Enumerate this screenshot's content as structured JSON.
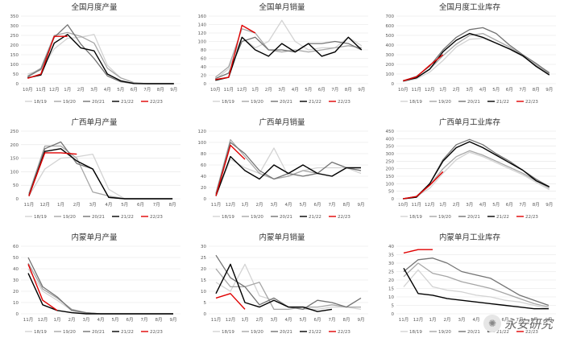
{
  "colors": {
    "18/19": "#d3d3d3",
    "19/20": "#a6a6a6",
    "20/21": "#737373",
    "21/22": "#000000",
    "22/23": "#e00000"
  },
  "watermark": {
    "icon": "wechat-icon",
    "text": "永安研究"
  },
  "chart_data": [
    {
      "type": "line",
      "title": "全国月度产量",
      "categories": [
        "10月",
        "11月",
        "12月",
        "1月",
        "2月",
        "3月",
        "4月",
        "5月",
        "6月",
        "7月",
        "8月",
        "9月"
      ],
      "ylim": [
        0,
        350
      ],
      "yticks": [
        0,
        50,
        100,
        150,
        200,
        250,
        300,
        350
      ],
      "series": [
        {
          "name": "18/19",
          "values": [
            50,
            70,
            180,
            235,
            240,
            255,
            95,
            30,
            6,
            0,
            0,
            0
          ]
        },
        {
          "name": "19/20",
          "values": [
            40,
            80,
            250,
            265,
            245,
            210,
            80,
            30,
            5,
            0,
            0,
            0
          ]
        },
        {
          "name": "20/21",
          "values": [
            35,
            75,
            240,
            305,
            205,
            130,
            40,
            10,
            1,
            0,
            0,
            0
          ]
        },
        {
          "name": "21/22",
          "values": [
            30,
            45,
            210,
            255,
            185,
            170,
            50,
            15,
            1,
            0,
            0,
            0
          ]
        },
        {
          "name": "22/23",
          "values": [
            28,
            50,
            245,
            245,
            null,
            null,
            null,
            null,
            null,
            null,
            null,
            null
          ]
        }
      ]
    },
    {
      "type": "line",
      "title": "全国单月销量",
      "categories": [
        "10月",
        "11月",
        "12月",
        "1月",
        "2月",
        "3月",
        "4月",
        "5月",
        "6月",
        "7月",
        "8月",
        "9月"
      ],
      "ylim": [
        0,
        160
      ],
      "yticks": [
        0,
        20,
        40,
        60,
        80,
        100,
        120,
        140,
        160
      ],
      "series": [
        {
          "name": "18/19",
          "values": [
            10,
            35,
            110,
            85,
            100,
            150,
            100,
            80,
            85,
            85,
            110,
            90
          ]
        },
        {
          "name": "19/20",
          "values": [
            15,
            40,
            130,
            120,
            80,
            75,
            80,
            75,
            80,
            85,
            90,
            85
          ]
        },
        {
          "name": "20/21",
          "values": [
            12,
            25,
            100,
            110,
            80,
            80,
            75,
            95,
            95,
            100,
            95,
            80
          ]
        },
        {
          "name": "21/22",
          "values": [
            8,
            15,
            110,
            80,
            65,
            95,
            75,
            95,
            65,
            75,
            110,
            80
          ]
        },
        {
          "name": "22/23",
          "values": [
            10,
            15,
            138,
            120,
            null,
            null,
            null,
            null,
            null,
            null,
            null,
            null
          ]
        }
      ]
    },
    {
      "type": "line",
      "title": "全国月度工业库存",
      "categories": [
        "10月",
        "11月",
        "12月",
        "1月",
        "2月",
        "3月",
        "4月",
        "5月",
        "6月",
        "7月",
        "8月",
        "9月"
      ],
      "ylim": [
        0,
        700
      ],
      "yticks": [
        0,
        100,
        200,
        300,
        400,
        500,
        600,
        700
      ],
      "series": [
        {
          "name": "18/19",
          "values": [
            20,
            50,
            120,
            240,
            380,
            460,
            470,
            420,
            360,
            280,
            200,
            120
          ]
        },
        {
          "name": "19/20",
          "values": [
            25,
            60,
            150,
            290,
            410,
            500,
            520,
            450,
            380,
            290,
            190,
            100
          ]
        },
        {
          "name": "20/21",
          "values": [
            30,
            75,
            180,
            350,
            480,
            560,
            580,
            520,
            400,
            300,
            210,
            110
          ]
        },
        {
          "name": "21/22",
          "values": [
            30,
            60,
            150,
            330,
            450,
            520,
            480,
            420,
            360,
            290,
            180,
            90
          ]
        },
        {
          "name": "22/23",
          "values": [
            30,
            70,
            190,
            300,
            null,
            null,
            null,
            null,
            null,
            null,
            null,
            null
          ]
        }
      ]
    },
    {
      "type": "line",
      "title": "广西单月产量",
      "categories": [
        "11月",
        "12月",
        "1月",
        "2月",
        "3月",
        "4月",
        "5月",
        "6月",
        "7月",
        "8月"
      ],
      "ylim": [
        0,
        250
      ],
      "yticks": [
        0,
        50,
        100,
        150,
        200,
        250
      ],
      "series": [
        {
          "name": "18/19",
          "values": [
            10,
            110,
            150,
            155,
            165,
            35,
            0,
            0,
            0,
            0
          ]
        },
        {
          "name": "19/20",
          "values": [
            20,
            195,
            195,
            150,
            25,
            10,
            0,
            0,
            0,
            0
          ]
        },
        {
          "name": "20/21",
          "values": [
            15,
            185,
            210,
            130,
            110,
            5,
            0,
            0,
            0,
            0
          ]
        },
        {
          "name": "21/22",
          "values": [
            10,
            175,
            185,
            140,
            110,
            5,
            0,
            0,
            0,
            0
          ]
        },
        {
          "name": "22/23",
          "values": [
            10,
            170,
            170,
            165,
            null,
            null,
            null,
            null,
            null,
            null
          ]
        }
      ]
    },
    {
      "type": "line",
      "title": "广西单月销量",
      "categories": [
        "11月",
        "12月",
        "1月",
        "2月",
        "3月",
        "4月",
        "5月",
        "6月",
        "7月",
        "8月",
        "9月"
      ],
      "ylim": [
        0,
        120
      ],
      "yticks": [
        0,
        20,
        40,
        60,
        80,
        100,
        120
      ],
      "series": [
        {
          "name": "18/19",
          "values": [
            5,
            70,
            55,
            45,
            90,
            40,
            50,
            55,
            55,
            55,
            45
          ]
        },
        {
          "name": "19/20",
          "values": [
            10,
            105,
            75,
            45,
            35,
            40,
            50,
            45,
            40,
            55,
            50
          ]
        },
        {
          "name": "20/21",
          "values": [
            8,
            100,
            80,
            50,
            35,
            45,
            40,
            45,
            65,
            55,
            50
          ]
        },
        {
          "name": "21/22",
          "values": [
            5,
            75,
            50,
            35,
            60,
            45,
            60,
            45,
            40,
            55,
            55
          ]
        },
        {
          "name": "22/23",
          "values": [
            5,
            95,
            70,
            null,
            null,
            null,
            null,
            null,
            null,
            null,
            null
          ]
        }
      ]
    },
    {
      "type": "line",
      "title": "广西单月工业库存",
      "categories": [
        "10月",
        "11月",
        "12月",
        "1月",
        "2月",
        "3月",
        "4月",
        "5月",
        "6月",
        "7月",
        "8月",
        "9月"
      ],
      "ylim": [
        0,
        450
      ],
      "yticks": [
        0,
        50,
        100,
        150,
        200,
        250,
        300,
        350,
        400,
        450
      ],
      "series": [
        {
          "name": "18/19",
          "values": [
            0,
            15,
            70,
            170,
            260,
            310,
            280,
            240,
            200,
            160,
            110,
            60
          ]
        },
        {
          "name": "19/20",
          "values": [
            0,
            10,
            90,
            200,
            280,
            320,
            290,
            250,
            210,
            170,
            120,
            70
          ]
        },
        {
          "name": "20/21",
          "values": [
            0,
            15,
            100,
            260,
            360,
            395,
            360,
            300,
            250,
            190,
            130,
            80
          ]
        },
        {
          "name": "21/22",
          "values": [
            0,
            10,
            100,
            250,
            340,
            380,
            340,
            290,
            240,
            190,
            120,
            80
          ]
        },
        {
          "name": "22/23",
          "values": [
            0,
            15,
            90,
            180,
            null,
            null,
            null,
            null,
            null,
            null,
            null,
            null
          ]
        }
      ]
    },
    {
      "type": "line",
      "title": "内蒙单月产量",
      "categories": [
        "11月",
        "12月",
        "1月",
        "2月",
        "3月",
        "4月",
        "5月",
        "6月",
        "7月",
        "8月",
        "9月"
      ],
      "ylim": [
        0,
        60
      ],
      "yticks": [
        0,
        10,
        20,
        30,
        40,
        50,
        60
      ],
      "series": [
        {
          "name": "18/19",
          "values": [
            40,
            20,
            12,
            3,
            1,
            0,
            0,
            0,
            0,
            0,
            0
          ]
        },
        {
          "name": "19/20",
          "values": [
            45,
            22,
            14,
            4,
            1,
            0,
            0,
            0,
            0,
            0,
            0
          ]
        },
        {
          "name": "20/21",
          "values": [
            50,
            24,
            15,
            3,
            1,
            0,
            0,
            0,
            0,
            0,
            0
          ]
        },
        {
          "name": "21/22",
          "values": [
            36,
            8,
            3,
            1,
            0,
            0,
            0,
            0,
            0,
            0,
            0
          ]
        },
        {
          "name": "22/23",
          "values": [
            44,
            12,
            3,
            null,
            null,
            null,
            null,
            null,
            null,
            null,
            null
          ]
        }
      ]
    },
    {
      "type": "line",
      "title": "内蒙单月销量",
      "categories": [
        "11月",
        "12月",
        "1月",
        "2月",
        "3月",
        "4月",
        "5月",
        "6月",
        "7月",
        "8月",
        "9月"
      ],
      "ylim": [
        0,
        30
      ],
      "yticks": [
        0,
        5,
        10,
        15,
        20,
        25,
        30
      ],
      "series": [
        {
          "name": "18/19",
          "values": [
            14,
            10,
            22,
            8,
            6,
            3,
            2,
            2,
            3,
            3,
            2
          ]
        },
        {
          "name": "19/20",
          "values": [
            20,
            12,
            12,
            14,
            2,
            2,
            3,
            3,
            4,
            3,
            3
          ]
        },
        {
          "name": "20/21",
          "values": [
            26,
            16,
            12,
            4,
            7,
            3,
            2,
            6,
            5,
            3,
            7
          ]
        },
        {
          "name": "21/22",
          "values": [
            9,
            22,
            5,
            3,
            6,
            3,
            3,
            1,
            2,
            null,
            null
          ]
        },
        {
          "name": "22/23",
          "values": [
            7,
            9,
            2,
            null,
            null,
            null,
            null,
            null,
            null,
            null,
            null
          ]
        }
      ]
    },
    {
      "type": "line",
      "title": "内蒙单月工业库存",
      "categories": [
        "11月",
        "12月",
        "1月",
        "2月",
        "3月",
        "4月",
        "5月",
        "6月",
        "7月",
        "8月",
        "9月"
      ],
      "ylim": [
        0,
        40
      ],
      "yticks": [
        0,
        5,
        10,
        15,
        20,
        25,
        30,
        35,
        "40"
      ],
      "ytick_labels": [
        "0",
        "5",
        "10",
        "15",
        "20",
        "25",
        "30",
        "35",
        "40"
      ],
      "series": [
        {
          "name": "18/19",
          "values": [
            16,
            26,
            16,
            14,
            13,
            11,
            10,
            8,
            7,
            5,
            3
          ]
        },
        {
          "name": "19/20",
          "values": [
            22,
            30,
            24,
            22,
            19,
            17,
            15,
            12,
            9,
            6,
            4
          ]
        },
        {
          "name": "20/21",
          "values": [
            25,
            32,
            33,
            30,
            25,
            23,
            21,
            16,
            11,
            8,
            5
          ]
        },
        {
          "name": "21/22",
          "values": [
            27,
            12,
            11,
            9,
            8,
            7,
            6,
            5,
            4,
            3,
            3
          ]
        },
        {
          "name": "22/23",
          "values": [
            36,
            38,
            38,
            null,
            null,
            null,
            null,
            null,
            null,
            null,
            null
          ]
        }
      ]
    }
  ],
  "ylabels_fmt": [
    [
      "0",
      "50",
      "100",
      "150",
      "200",
      "250",
      "300",
      "350"
    ],
    [
      "0",
      "20",
      "40",
      "60",
      "80",
      "100",
      "120",
      "140",
      "160"
    ],
    [
      "0",
      "100",
      "200",
      "300",
      "400",
      "500",
      "600",
      "700"
    ],
    [
      "0",
      "50",
      "100",
      "150",
      "200",
      "250"
    ],
    [
      "0",
      "20",
      "40",
      "60",
      "80",
      "100",
      "120"
    ],
    [
      "0",
      "50",
      "100",
      "150",
      "200",
      "250",
      "300",
      "350",
      "400",
      "450"
    ],
    [
      "0",
      "10",
      "20",
      "30",
      "40",
      "50",
      "60"
    ],
    [
      "0",
      "5",
      "10",
      "15",
      "20",
      "25",
      "30"
    ],
    [
      "0",
      "5",
      "10",
      "15",
      "20",
      "25",
      "30",
      "35",
      "40"
    ]
  ],
  "ylabels_display": [
    [
      "0",
      "50",
      "100",
      "150",
      "200",
      "250",
      "300",
      "350"
    ],
    [
      "0",
      "20",
      "40",
      "60",
      "80",
      "100",
      "120",
      "140",
      "160"
    ],
    [
      "0",
      "100",
      "200",
      "300",
      "400",
      "500",
      "600",
      "700"
    ],
    [
      "0",
      "50",
      "100",
      "150",
      "200",
      "250"
    ],
    [
      "0",
      "20",
      "40",
      "60",
      "80",
      "100",
      "120"
    ],
    [
      "0",
      "50",
      "100",
      "150",
      "200",
      "250",
      "300",
      "350",
      "400",
      "450"
    ],
    [
      "0",
      "10",
      "20",
      "30",
      "40",
      "50",
      "60"
    ],
    [
      "0",
      "5",
      "10",
      "15",
      "20",
      "25",
      "30"
    ],
    [
      "0",
      "5",
      "10",
      "15",
      "20",
      "25",
      "30",
      "35",
      "40"
    ]
  ]
}
